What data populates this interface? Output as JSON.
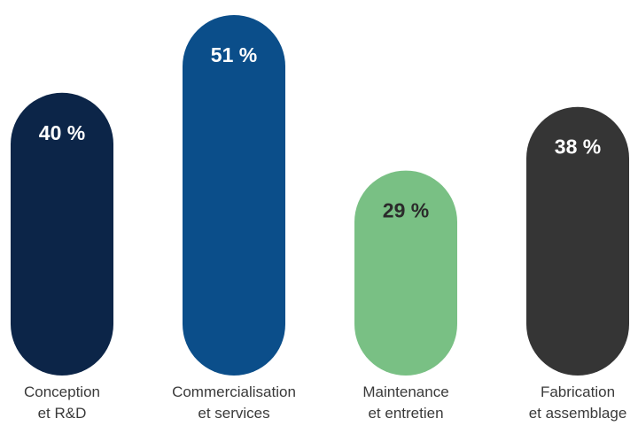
{
  "chart_data": {
    "type": "bar",
    "title": "",
    "xlabel": "",
    "ylabel": "",
    "ylim": [
      0,
      51
    ],
    "categories": [
      [
        "Conception",
        "et R&D"
      ],
      [
        "Commercialisation",
        "et services"
      ],
      [
        "Maintenance",
        "et entretien"
      ],
      [
        "Fabrication",
        "et assemblage"
      ]
    ],
    "values": [
      40,
      51,
      29,
      38
    ],
    "value_labels": [
      "40 %",
      "51 %",
      "29 %",
      "38 %"
    ],
    "colors": [
      "#0c2548",
      "#0b4e8a",
      "#79c084",
      "#353535"
    ],
    "value_label_colors": [
      "#ffffff",
      "#ffffff",
      "#2b2b2b",
      "#ffffff"
    ]
  }
}
